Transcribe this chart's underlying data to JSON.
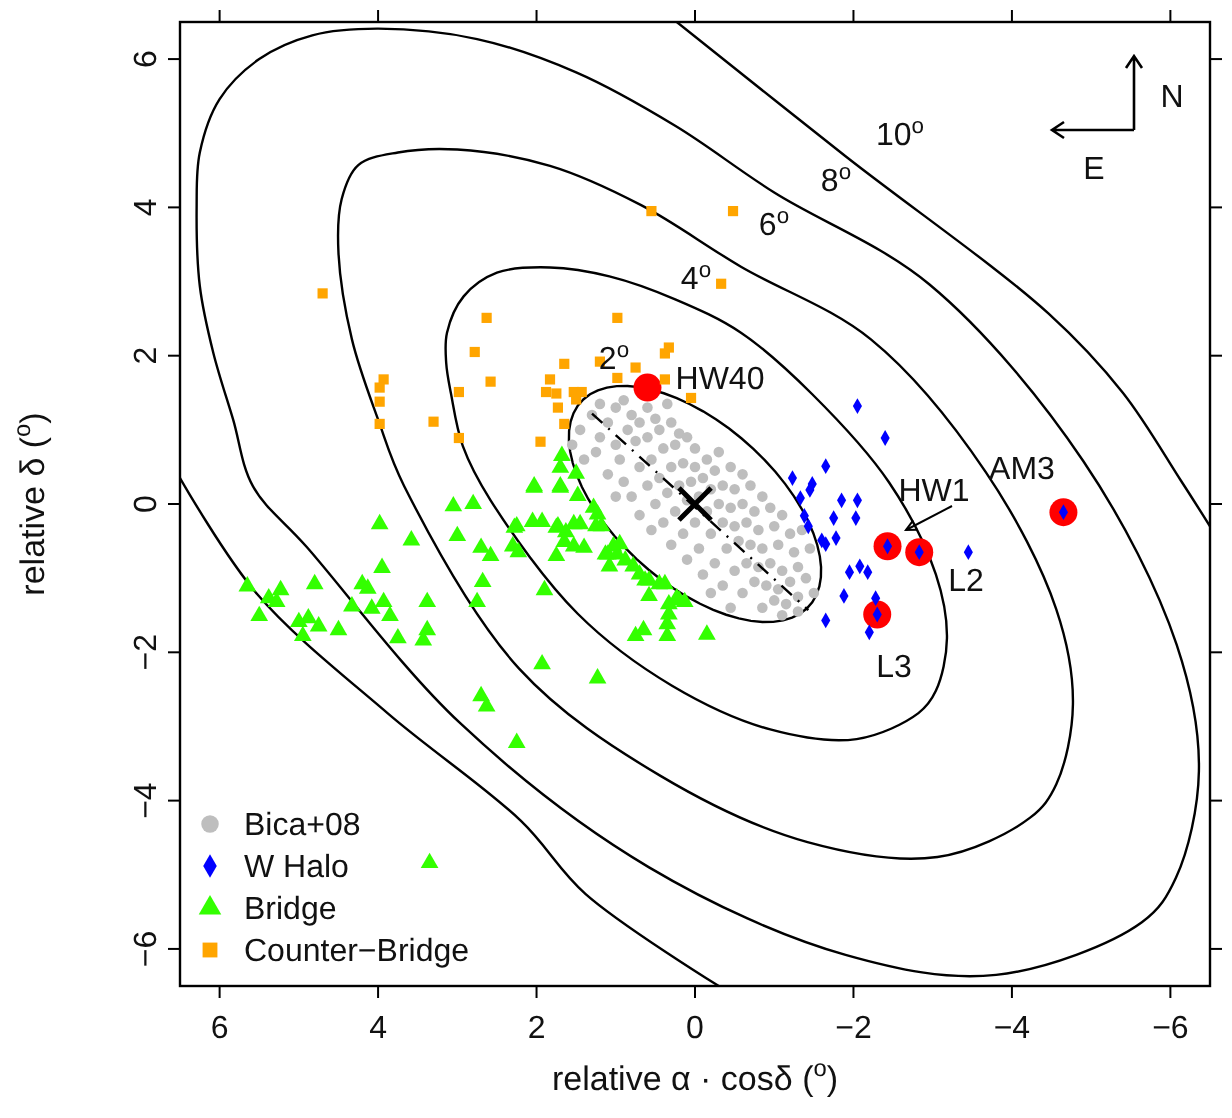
{
  "chart_data": {
    "type": "scatter",
    "xlabel": "relative α · cosδ ($^{o}$)",
    "ylabel": "relative δ ($^{o}$)",
    "xlim": [
      6.5,
      -6.5
    ],
    "ylim": [
      -6.5,
      6.5
    ],
    "xticks": [
      6,
      4,
      2,
      0,
      {
        "value": -2,
        "label": "−2"
      },
      {
        "value": -4,
        "label": "−4"
      },
      {
        "value": -6,
        "label": "−6"
      }
    ],
    "yticks": [
      {
        "value": -6,
        "label": "−6"
      },
      {
        "value": -4,
        "label": "−4"
      },
      {
        "value": -2,
        "label": "−2"
      },
      0,
      2,
      4,
      6
    ],
    "legend": "bottom left",
    "annotations": [
      "N",
      "E",
      "2$^{o}$",
      "4$^{o}$",
      "6$^{o}$",
      "8$^{o}$",
      "10$^{o}$",
      "HW40",
      "HW1",
      "AM3",
      "L2",
      "L3"
    ],
    "series": [
      {
        "type": "line",
        "color": "#000000",
        "line_style": "solid",
        "x": [
          6.5,
          5.53,
          3.87,
          2.2,
          1.38,
          -0.3
        ],
        "values": [
          0.35,
          -1.21,
          -2.83,
          -4.27,
          -5.26,
          -6.5
        ]
      },
      {
        "type": "line",
        "color": "#000000",
        "line_style": "solid",
        "x": [
          0.23,
          -1.9,
          -4.46,
          -5.4,
          -6.13,
          -6.5
        ],
        "values": [
          6.5,
          4.69,
          2.57,
          1.5,
          0.32,
          -0.3
        ]
      },
      {
        "color": "#ff0000",
        "marker": "circle",
        "x": [
          0.6,
          -2.43,
          -4.65,
          -2.83,
          -2.3
        ],
        "values": [
          1.57,
          -0.57,
          -0.11,
          -0.65,
          -1.49
        ]
      },
      {
        "name": "Bica+08",
        "color": "#bebebe",
        "marker": "circle",
        "x": [
          1.3,
          1.2,
          1.1,
          1.0,
          0.9,
          0.8,
          1.2,
          1.0,
          0.85,
          0.7,
          0.6,
          0.5,
          1.4,
          1.25,
          0.95,
          0.75,
          0.6,
          0.45,
          0.3,
          0.2,
          1.1,
          0.9,
          0.7,
          0.55,
          0.4,
          0.25,
          0.1,
          0.0,
          1.0,
          0.8,
          0.6,
          0.45,
          0.3,
          0.15,
          0.0,
          -0.15,
          -0.3,
          0.7,
          0.5,
          0.35,
          0.2,
          0.05,
          -0.1,
          -0.25,
          -0.45,
          -0.6,
          0.55,
          0.4,
          0.25,
          0.1,
          -0.05,
          -0.2,
          -0.35,
          -0.5,
          -0.7,
          -0.85,
          0.3,
          0.15,
          0.0,
          -0.15,
          -0.3,
          -0.45,
          -0.6,
          -0.75,
          -0.95,
          -1.1,
          0.1,
          -0.05,
          -0.2,
          -0.35,
          -0.5,
          -0.65,
          -0.8,
          -1.0,
          -1.2,
          -1.35,
          -0.1,
          -0.25,
          -0.4,
          -0.55,
          -0.7,
          -0.85,
          -1.05,
          -1.25,
          -1.45,
          -0.35,
          -0.5,
          -0.65,
          -0.8,
          -0.95,
          -1.1,
          -1.3,
          -0.6,
          -0.75,
          -0.9,
          -1.05,
          -1.2,
          -1.4,
          -0.85,
          -1.0,
          -1.15,
          -1.3,
          -1.5,
          -1.1,
          -1.3,
          1.45,
          1.55,
          0.35,
          -0.45,
          -0.2
        ],
        "values": [
          1.2,
          1.35,
          1.1,
          1.3,
          1.4,
          1.2,
          0.9,
          0.8,
          1.0,
          1.1,
          1.3,
          1.15,
          0.6,
          0.7,
          0.6,
          0.85,
          0.9,
          1.0,
          1.1,
          0.95,
          0.4,
          0.3,
          0.5,
          0.6,
          0.75,
          0.8,
          0.9,
          0.75,
          0.1,
          0.1,
          0.25,
          0.35,
          0.5,
          0.55,
          0.5,
          0.6,
          0.7,
          -0.15,
          0.0,
          0.15,
          0.25,
          0.3,
          0.35,
          0.45,
          0.5,
          0.4,
          -0.35,
          -0.25,
          -0.1,
          0.05,
          0.1,
          0.2,
          0.25,
          0.2,
          0.25,
          0.1,
          -0.55,
          -0.4,
          -0.25,
          -0.1,
          0.0,
          -0.05,
          0.0,
          -0.1,
          -0.05,
          -0.15,
          -0.75,
          -0.6,
          -0.4,
          -0.25,
          -0.3,
          -0.25,
          -0.35,
          -0.3,
          -0.4,
          -0.35,
          -0.95,
          -0.8,
          -0.6,
          -0.5,
          -0.55,
          -0.6,
          -0.55,
          -0.65,
          -0.6,
          -1.1,
          -0.9,
          -0.8,
          -0.85,
          -0.8,
          -0.9,
          -0.85,
          -1.2,
          -1.05,
          -1.1,
          -1.15,
          -1.05,
          -1.0,
          -1.4,
          -1.3,
          -1.35,
          -1.25,
          -1.2,
          -1.5,
          -1.45,
          1.0,
          0.8,
          1.35,
          -1.4,
          -1.2
        ]
      },
      {
        "name": "W Halo",
        "color": "#0000ff",
        "marker": "diamond",
        "x": [
          -2.05,
          -2.4,
          -1.65,
          -1.23,
          -1.48,
          -1.45,
          -1.33,
          -1.85,
          -2.05,
          -1.75,
          -2.03,
          -1.38,
          -1.43,
          -1.6,
          -1.65,
          -1.78,
          -2.43,
          -2.83,
          -3.45,
          -1.95,
          -2.08,
          -2.18,
          -1.88,
          -2.28,
          -2.3,
          -1.65,
          -2.2,
          -4.65
        ],
        "values": [
          1.32,
          0.89,
          0.51,
          0.35,
          0.27,
          0.19,
          0.08,
          0.05,
          0.05,
          -0.19,
          -0.19,
          -0.16,
          -0.3,
          -0.49,
          -0.54,
          -0.46,
          -0.57,
          -0.65,
          -0.65,
          -0.92,
          -0.84,
          -0.92,
          -1.24,
          -1.27,
          -1.49,
          -1.57,
          -1.73,
          -0.11
        ]
      },
      {
        "name": "Bridge",
        "color": "#33ff00",
        "marker": "triangle",
        "x": [
          5.65,
          5.5,
          5.38,
          5.28,
          5.23,
          5.0,
          4.88,
          4.95,
          4.8,
          4.75,
          4.5,
          4.33,
          4.2,
          4.13,
          4.08,
          3.93,
          3.85,
          3.75,
          3.98,
          3.95,
          3.58,
          3.38,
          3.38,
          3.43,
          3.05,
          2.8,
          3.0,
          2.7,
          2.58,
          2.68,
          2.75,
          2.03,
          1.7,
          2.25,
          2.05,
          1.93,
          2.3,
          2.23,
          1.9,
          1.75,
          1.73,
          1.63,
          1.45,
          1.65,
          1.53,
          1.4,
          1.48,
          1.7,
          1.23,
          1.18,
          1.13,
          1.03,
          1.08,
          0.98,
          0.88,
          0.78,
          0.7,
          0.58,
          0.58,
          0.45,
          0.38,
          0.23,
          0.13,
          0.33,
          0.35,
          0.35,
          0.75,
          0.65,
          -0.15,
          1.93,
          1.23,
          2.7,
          2.63,
          2.25,
          3.35,
          1.68,
          1.5,
          2.03,
          1.7,
          1.28,
          1.25,
          1.53,
          1.1,
          0.95,
          2.28,
          1.75,
          0.63,
          0.33,
          0.2
        ],
        "values": [
          -1.11,
          -1.51,
          -1.27,
          -1.32,
          -1.16,
          -1.59,
          -1.54,
          -1.78,
          -1.08,
          -1.65,
          -1.7,
          -1.38,
          -1.08,
          -1.14,
          -1.41,
          -1.32,
          -1.51,
          -1.81,
          -0.27,
          -0.86,
          -0.49,
          -1.32,
          -1.7,
          -1.84,
          -0.03,
          0.0,
          -0.43,
          -0.59,
          -0.7,
          -1.05,
          -1.32,
          0.24,
          0.24,
          -0.3,
          -0.24,
          -0.24,
          -0.57,
          -0.65,
          -1.16,
          -0.7,
          -0.3,
          -0.38,
          -0.27,
          -0.51,
          -0.57,
          -0.59,
          0.11,
          0.49,
          -0.14,
          -0.3,
          -0.68,
          -0.57,
          -0.84,
          -0.68,
          -0.76,
          -0.84,
          -0.95,
          -1.03,
          -1.24,
          -1.08,
          -1.08,
          -1.27,
          -1.32,
          -1.49,
          -1.62,
          -1.78,
          -1.78,
          -1.7,
          -1.76,
          -2.16,
          -2.35,
          -2.59,
          -2.73,
          -3.22,
          -4.84,
          0.65,
          0.41,
          0.22,
          0.22,
          -0.05,
          -0.3,
          -0.27,
          -0.68,
          -0.54,
          -0.32,
          -0.32,
          -1.03,
          -1.35,
          -1.3
        ]
      },
      {
        "name": "Counter−Bridge",
        "color": "#ffa500",
        "marker": "square",
        "x": [
          4.7,
          2.63,
          2.78,
          2.58,
          2.98,
          3.93,
          3.98,
          3.98,
          3.98,
          3.3,
          2.98,
          1.65,
          1.83,
          1.88,
          1.75,
          1.73,
          1.53,
          1.43,
          1.5,
          1.65,
          1.95,
          0.98,
          1.2,
          0.98,
          0.75,
          0.38,
          0.33,
          0.38,
          0.05,
          -0.33,
          0.55,
          -0.48
        ],
        "values": [
          2.84,
          2.51,
          2.05,
          1.65,
          1.51,
          1.68,
          1.57,
          1.38,
          1.08,
          1.11,
          0.89,
          1.89,
          1.68,
          1.51,
          1.49,
          1.3,
          1.51,
          1.51,
          1.41,
          1.08,
          0.84,
          2.51,
          1.92,
          1.7,
          1.84,
          2.03,
          2.11,
          1.68,
          1.43,
          2.97,
          3.95,
          3.95
        ]
      },
      {
        "type": "line",
        "color": "#000000",
        "line_style": "dashed",
        "x": [
          1.3,
          -1.43
        ],
        "values": [
          1.22,
          -1.43
        ]
      },
      {
        "color": "#000000",
        "marker": "cross",
        "x": [
          0
        ],
        "values": [
          0
        ]
      }
    ]
  }
}
